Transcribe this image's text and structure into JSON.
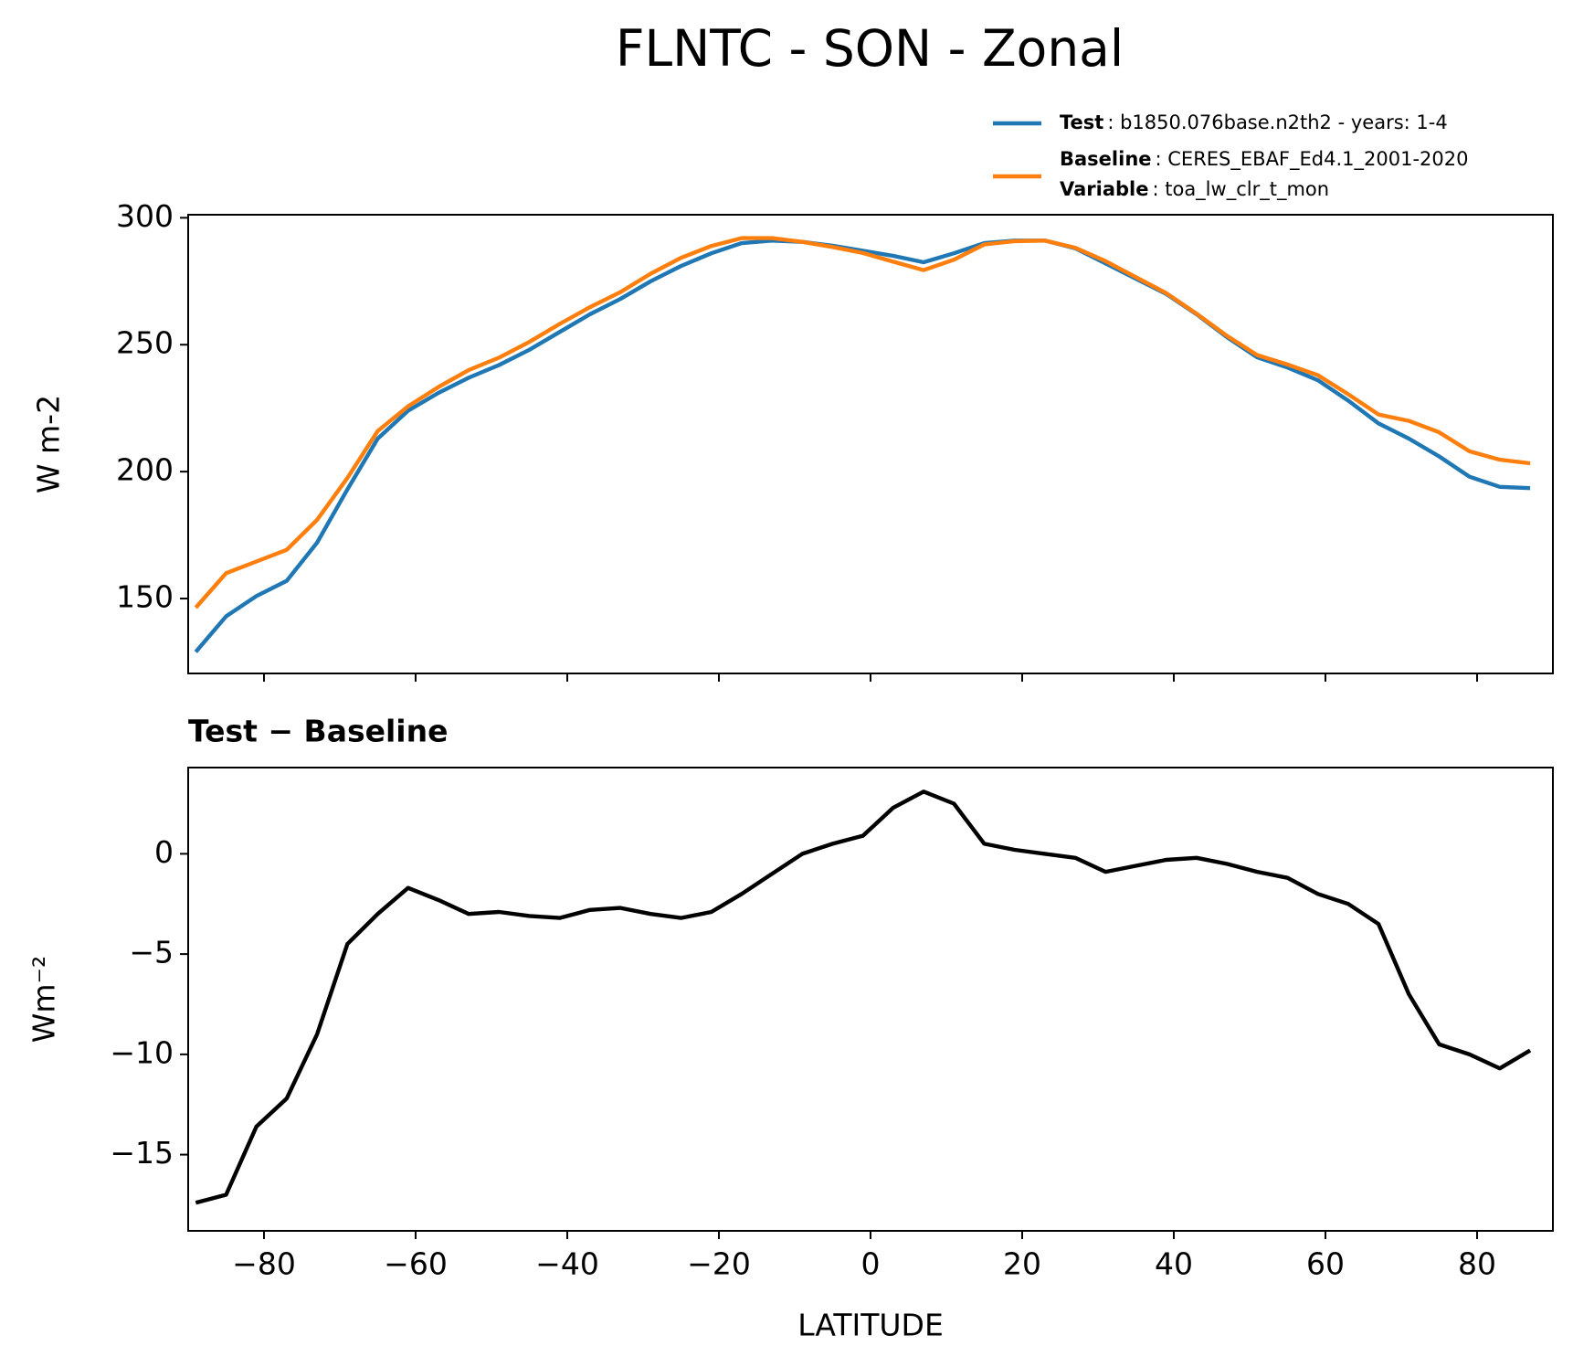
{
  "chart_data": [
    {
      "type": "line",
      "title": "FLNTC - SON - Zonal",
      "ylabel": "W m-2",
      "x": [
        -89,
        -85,
        -81,
        -77,
        -73,
        -69,
        -65,
        -61,
        -57,
        -53,
        -49,
        -45,
        -41,
        -37,
        -33,
        -29,
        -25,
        -21,
        -17,
        -13,
        -9,
        -5,
        -1,
        3,
        7,
        11,
        15,
        19,
        23,
        27,
        31,
        35,
        39,
        43,
        47,
        51,
        55,
        59,
        63,
        67,
        71,
        75,
        79,
        83,
        87
      ],
      "series": [
        {
          "name": "Test",
          "detail": ": b1850.076base.n2th2 - years: 1-4",
          "color": "#1f77b4",
          "values": [
            129,
            143,
            151,
            157,
            172,
            193,
            213,
            224,
            231,
            237,
            242,
            248,
            255,
            262,
            268,
            275,
            281,
            286,
            290,
            291,
            290.5,
            289,
            287,
            285,
            282.5,
            286,
            290,
            291,
            291,
            288,
            282,
            276,
            270,
            262,
            253,
            245,
            241,
            236,
            228,
            219,
            213,
            206,
            198,
            194,
            193.5
          ]
        },
        {
          "name": "Baseline",
          "detail": ": CERES_EBAF_Ed4.1_2001-2020",
          "color": "#ff7f0e",
          "values": [
            146.4,
            160,
            164.6,
            169.2,
            181,
            197.5,
            216,
            225.7,
            233.3,
            240,
            244.9,
            251.1,
            258.2,
            264.8,
            270.7,
            278,
            284.2,
            288.9,
            292,
            292,
            290.5,
            288.5,
            286.1,
            282.7,
            279.4,
            283.5,
            289.5,
            290.8,
            291,
            288.2,
            282.9,
            276.6,
            270.3,
            262.2,
            253.5,
            245.9,
            242.2,
            238,
            230.5,
            222.5,
            220,
            215.5,
            208,
            204.7,
            203.3
          ]
        }
      ],
      "legend_note": {
        "key": "Variable",
        "text": ": toa_lw_clr_t_mon"
      },
      "legend": "upper right",
      "xlim": [
        -90,
        90
      ],
      "xticks": [
        -80,
        -60,
        -40,
        -20,
        0,
        20,
        40,
        60,
        80
      ],
      "xtick_labels": false,
      "ylim": [
        120.5,
        301.2
      ],
      "yticks": [
        150,
        200,
        250,
        300
      ]
    },
    {
      "type": "line",
      "title": "Test − Baseline",
      "xlabel": "LATITUDE",
      "ylabel": "Wm⁻²",
      "x": [
        -89,
        -85,
        -81,
        -77,
        -73,
        -69,
        -65,
        -61,
        -57,
        -53,
        -49,
        -45,
        -41,
        -37,
        -33,
        -29,
        -25,
        -21,
        -17,
        -13,
        -9,
        -5,
        -1,
        3,
        7,
        11,
        15,
        19,
        23,
        27,
        31,
        35,
        39,
        43,
        47,
        51,
        55,
        59,
        63,
        67,
        71,
        75,
        79,
        83,
        87
      ],
      "series": [
        {
          "color": "#000000",
          "values": [
            -17.4,
            -17.0,
            -13.6,
            -12.2,
            -9.0,
            -4.5,
            -3.0,
            -1.7,
            -2.3,
            -3.0,
            -2.9,
            -3.1,
            -3.2,
            -2.8,
            -2.7,
            -3.0,
            -3.2,
            -2.9,
            -2.0,
            -1.0,
            0.0,
            0.5,
            0.9,
            2.3,
            3.1,
            2.5,
            0.5,
            0.2,
            0.0,
            -0.2,
            -0.9,
            -0.6,
            -0.3,
            -0.2,
            -0.5,
            -0.9,
            -1.2,
            -2.0,
            -2.5,
            -3.5,
            -7.0,
            -9.5,
            -10.0,
            -10.7,
            -9.8
          ]
        }
      ],
      "xlim": [
        -90,
        90
      ],
      "xticks": [
        {
          "value": -80,
          "label": "−80"
        },
        {
          "value": -60,
          "label": "−60"
        },
        {
          "value": -40,
          "label": "−40"
        },
        {
          "value": -20,
          "label": "−20"
        },
        0,
        20,
        40,
        60,
        80
      ],
      "xtick_labels": true,
      "ylim": [
        -18.8,
        4.3
      ],
      "yticks": [
        {
          "value": -15,
          "label": "−15"
        },
        {
          "value": -10,
          "label": "−10"
        },
        {
          "value": -5,
          "label": "−5"
        },
        0
      ]
    }
  ]
}
